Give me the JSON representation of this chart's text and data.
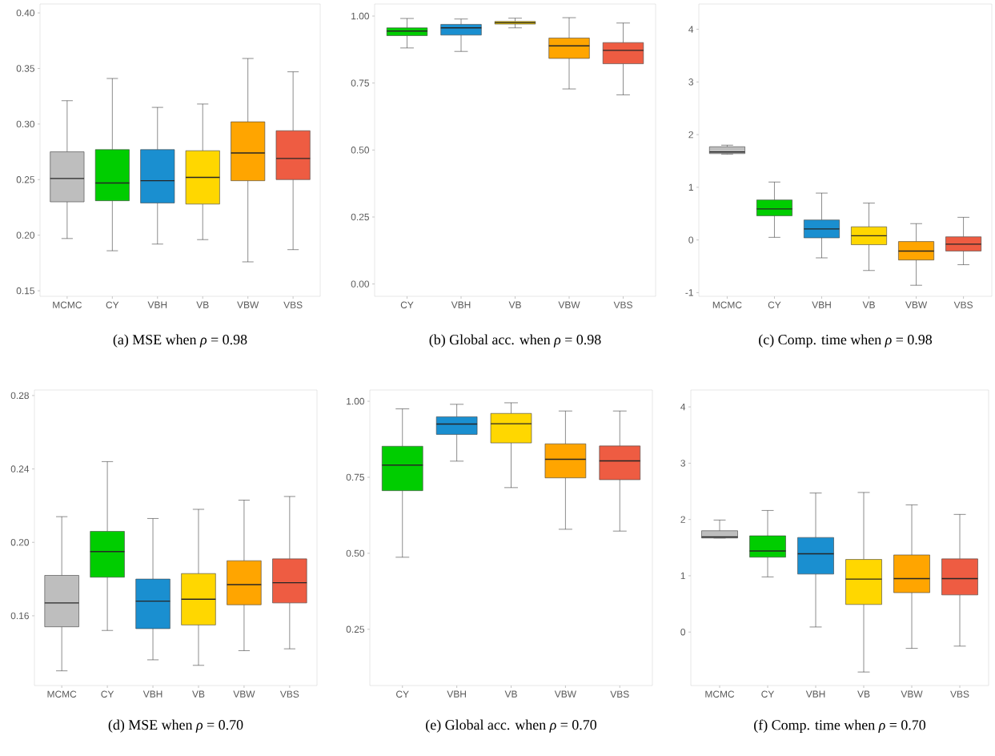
{
  "chart_data": [
    {
      "type": "box",
      "title": "(a) MSE when *ρ* = 0.98",
      "categories": [
        "MCMC",
        "CY",
        "VBH",
        "VB",
        "VBW",
        "VBS"
      ],
      "colors": [
        "#bebebe",
        "#00cd00",
        "#1a8fd0",
        "#ffd700",
        "#ffa500",
        "#ee5c42"
      ],
      "boxes": [
        {
          "low": 0.197,
          "q1": 0.23,
          "median": 0.251,
          "q3": 0.275,
          "high": 0.321
        },
        {
          "low": 0.186,
          "q1": 0.231,
          "median": 0.247,
          "q3": 0.277,
          "high": 0.341
        },
        {
          "low": 0.192,
          "q1": 0.229,
          "median": 0.249,
          "q3": 0.277,
          "high": 0.315
        },
        {
          "low": 0.196,
          "q1": 0.228,
          "median": 0.252,
          "q3": 0.276,
          "high": 0.318
        },
        {
          "low": 0.176,
          "q1": 0.249,
          "median": 0.274,
          "q3": 0.302,
          "high": 0.359
        },
        {
          "low": 0.187,
          "q1": 0.25,
          "median": 0.269,
          "q3": 0.294,
          "high": 0.347
        }
      ],
      "ylim": [
        0.145,
        0.408
      ],
      "yticks": [
        {
          "value": 0.15,
          "label": "0.15"
        },
        {
          "value": 0.2,
          "label": "0.20"
        },
        {
          "value": 0.25,
          "label": "0.25"
        },
        {
          "value": 0.3,
          "label": "0.30"
        },
        {
          "value": 0.35,
          "label": "0.35"
        },
        {
          "value": 0.4,
          "label": "0.40"
        }
      ]
    },
    {
      "type": "box",
      "title": "(b) Global acc. when *ρ* = 0.98",
      "categories": [
        "CY",
        "VBH",
        "VB",
        "VBW",
        "VBS"
      ],
      "colors": [
        "#00cd00",
        "#1a8fd0",
        "#ffd700",
        "#ffa500",
        "#ee5c42"
      ],
      "boxes": [
        {
          "low": 0.881,
          "q1": 0.927,
          "median": 0.944,
          "q3": 0.956,
          "high": 0.991
        },
        {
          "low": 0.868,
          "q1": 0.929,
          "median": 0.956,
          "q3": 0.969,
          "high": 0.989
        },
        {
          "low": 0.956,
          "q1": 0.97,
          "median": 0.975,
          "q3": 0.98,
          "high": 0.992
        },
        {
          "low": 0.728,
          "q1": 0.842,
          "median": 0.889,
          "q3": 0.918,
          "high": 0.994
        },
        {
          "low": 0.706,
          "q1": 0.822,
          "median": 0.872,
          "q3": 0.901,
          "high": 0.974
        }
      ],
      "ylim": [
        -0.046,
        1.045
      ],
      "yticks": [
        {
          "value": 0,
          "label": "0.00"
        },
        {
          "value": 0.25,
          "label": "0.25"
        },
        {
          "value": 0.5,
          "label": "0.50"
        },
        {
          "value": 0.75,
          "label": "0.75"
        },
        {
          "value": 1,
          "label": "1.00"
        }
      ]
    },
    {
      "type": "box",
      "title": "(c) Comp. time when *ρ* = 0.98",
      "categories": [
        "MCMC",
        "CY",
        "VBH",
        "VB",
        "VBW",
        "VBS"
      ],
      "colors": [
        "#bebebe",
        "#00cd00",
        "#1a8fd0",
        "#ffd700",
        "#ffa500",
        "#ee5c42"
      ],
      "boxes": [
        {
          "low": 1.63,
          "q1": 1.64,
          "median": 1.67,
          "q3": 1.77,
          "high": 1.8
        },
        {
          "low": 0.05,
          "q1": 0.46,
          "median": 0.59,
          "q3": 0.76,
          "high": 1.1
        },
        {
          "low": -0.34,
          "q1": 0.04,
          "median": 0.21,
          "q3": 0.38,
          "high": 0.89
        },
        {
          "low": -0.58,
          "q1": -0.09,
          "median": 0.08,
          "q3": 0.25,
          "high": 0.7
        },
        {
          "low": -0.86,
          "q1": -0.38,
          "median": -0.21,
          "q3": -0.03,
          "high": 0.31
        },
        {
          "low": -0.47,
          "q1": -0.21,
          "median": -0.08,
          "q3": 0.06,
          "high": 0.43
        }
      ],
      "ylim": [
        -1.07,
        4.48
      ],
      "yticks": [
        -1,
        0,
        1,
        2,
        3,
        4
      ]
    },
    {
      "type": "box",
      "title": "(d) MSE when *ρ* = 0.70",
      "categories": [
        "MCMC",
        "CY",
        "VBH",
        "VB",
        "VBW",
        "VBS"
      ],
      "colors": [
        "#bebebe",
        "#00cd00",
        "#1a8fd0",
        "#ffd700",
        "#ffa500",
        "#ee5c42"
      ],
      "boxes": [
        {
          "low": 0.13,
          "q1": 0.154,
          "median": 0.167,
          "q3": 0.182,
          "high": 0.214
        },
        {
          "low": 0.152,
          "q1": 0.181,
          "median": 0.195,
          "q3": 0.206,
          "high": 0.244
        },
        {
          "low": 0.136,
          "q1": 0.153,
          "median": 0.168,
          "q3": 0.18,
          "high": 0.213
        },
        {
          "low": 0.133,
          "q1": 0.155,
          "median": 0.169,
          "q3": 0.183,
          "high": 0.218
        },
        {
          "low": 0.141,
          "q1": 0.166,
          "median": 0.177,
          "q3": 0.19,
          "high": 0.223
        },
        {
          "low": 0.142,
          "q1": 0.167,
          "median": 0.178,
          "q3": 0.191,
          "high": 0.225
        }
      ],
      "ylim": [
        0.122,
        0.283
      ],
      "yticks": [
        {
          "value": 0.16,
          "label": "0.16"
        },
        {
          "value": 0.2,
          "label": "0.20"
        },
        {
          "value": 0.24,
          "label": "0.24"
        },
        {
          "value": 0.28,
          "label": "0.28"
        }
      ]
    },
    {
      "type": "box",
      "title": "(e) Global acc. when *ρ* = 0.70",
      "categories": [
        "CY",
        "VBH",
        "VB",
        "VBW",
        "VBS"
      ],
      "colors": [
        "#00cd00",
        "#1a8fd0",
        "#ffd700",
        "#ffa500",
        "#ee5c42"
      ],
      "boxes": [
        {
          "low": 0.487,
          "q1": 0.706,
          "median": 0.79,
          "q3": 0.852,
          "high": 0.975
        },
        {
          "low": 0.803,
          "q1": 0.891,
          "median": 0.925,
          "q3": 0.949,
          "high": 0.99
        },
        {
          "low": 0.716,
          "q1": 0.863,
          "median": 0.926,
          "q3": 0.96,
          "high": 0.995
        },
        {
          "low": 0.579,
          "q1": 0.748,
          "median": 0.809,
          "q3": 0.86,
          "high": 0.968
        },
        {
          "low": 0.573,
          "q1": 0.742,
          "median": 0.804,
          "q3": 0.853,
          "high": 0.968
        }
      ],
      "ylim": [
        0.065,
        1.037
      ],
      "yticks": [
        {
          "value": 0.25,
          "label": "0.25"
        },
        {
          "value": 0.5,
          "label": "0.50"
        },
        {
          "value": 0.75,
          "label": "0.75"
        },
        {
          "value": 1,
          "label": "1.00"
        }
      ]
    },
    {
      "type": "box",
      "title": "(f) Comp. time when *ρ* = 0.70",
      "categories": [
        "MCMC",
        "CY",
        "VBH",
        "VB",
        "VBW",
        "VBS"
      ],
      "colors": [
        "#bebebe",
        "#00cd00",
        "#1a8fd0",
        "#ffd700",
        "#ffa500",
        "#ee5c42"
      ],
      "boxes": [
        {
          "low": 1.67,
          "q1": 1.67,
          "median": 1.69,
          "q3": 1.8,
          "high": 1.99
        },
        {
          "low": 0.98,
          "q1": 1.33,
          "median": 1.44,
          "q3": 1.71,
          "high": 2.16
        },
        {
          "low": 0.09,
          "q1": 1.03,
          "median": 1.39,
          "q3": 1.68,
          "high": 2.47
        },
        {
          "low": -0.71,
          "q1": 0.49,
          "median": 0.94,
          "q3": 1.29,
          "high": 2.48
        },
        {
          "low": -0.29,
          "q1": 0.7,
          "median": 0.95,
          "q3": 1.37,
          "high": 2.26
        },
        {
          "low": -0.25,
          "q1": 0.66,
          "median": 0.95,
          "q3": 1.3,
          "high": 2.09
        }
      ],
      "ylim": [
        -0.95,
        4.3
      ],
      "yticks": [
        0,
        1,
        2,
        3,
        4
      ]
    }
  ]
}
